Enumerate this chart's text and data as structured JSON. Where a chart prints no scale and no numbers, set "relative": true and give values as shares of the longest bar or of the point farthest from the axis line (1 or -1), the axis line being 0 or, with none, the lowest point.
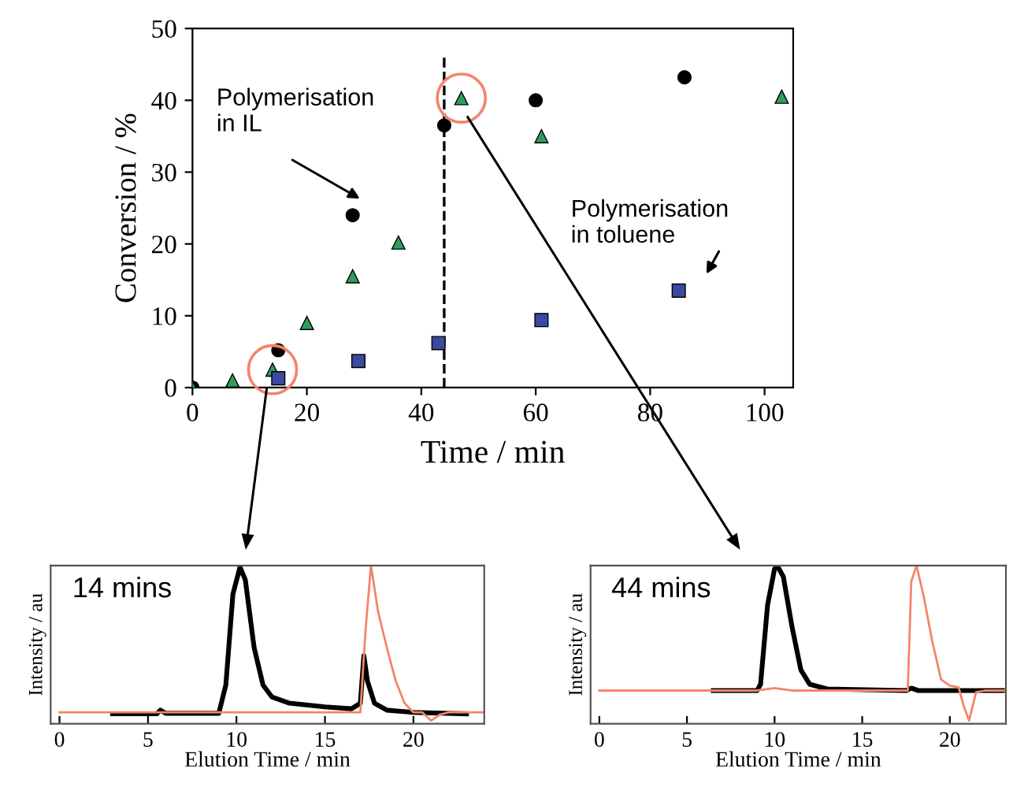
{
  "chart_data": [
    {
      "type": "scatter",
      "xlabel": "Time / min",
      "ylabel": "Conversion / %",
      "xlim": [
        0,
        105
      ],
      "xticks": [
        0,
        20,
        40,
        60,
        80,
        100
      ],
      "ylim": [
        0,
        50
      ],
      "yticks": [
        0,
        10,
        20,
        30,
        40,
        50
      ],
      "grid": false,
      "series": [
        {
          "color": "#000000",
          "marker": "circle",
          "x": [
            0,
            15,
            28,
            44,
            60,
            86
          ],
          "values": [
            0,
            5.2,
            24,
            36.5,
            40,
            43.2
          ]
        },
        {
          "color": "#2e9e5e",
          "marker": "triangle",
          "x": [
            0,
            7,
            14,
            20,
            28,
            36,
            47,
            61,
            103
          ],
          "values": [
            0,
            1,
            2.5,
            9,
            15.5,
            20.2,
            40.3,
            35,
            40.5
          ]
        },
        {
          "color": "#3a4aa0",
          "marker": "square",
          "x": [
            15,
            29,
            43,
            61,
            85
          ],
          "values": [
            1.3,
            3.7,
            6.2,
            9.4,
            13.5
          ]
        }
      ],
      "ref_lines": [
        {
          "axis": "x",
          "value": 44,
          "color": "#000000",
          "line_style": "dashed"
        }
      ],
      "annotations": [
        "Polymerisation\nin IL",
        "Polymerisation\nin toluene"
      ]
    },
    {
      "type": "line",
      "relative": true,
      "xlabel": "Elution Time / min",
      "ylabel": "Intensity / au",
      "xlim": [
        -0.5,
        24
      ],
      "xticks": [
        0,
        5,
        10,
        15,
        20
      ],
      "tick_labels": "x",
      "line_style": "solid",
      "series": [
        {
          "color": "#000000",
          "x": [
            3,
            5.5,
            5.7,
            6,
            9,
            9.4,
            9.8,
            10.2,
            10.5,
            11,
            11.5,
            12,
            13,
            15,
            16.5,
            17,
            17.2,
            17.4,
            17.8,
            18.5,
            20,
            23
          ],
          "values": [
            0.063,
            0.063,
            0.086,
            0.066,
            0.066,
            0.245,
            0.82,
            0.99,
            0.91,
            0.48,
            0.245,
            0.17,
            0.13,
            0.107,
            0.095,
            0.13,
            0.43,
            0.27,
            0.13,
            0.086,
            0.072,
            0.063
          ]
        },
        {
          "color": "#f4846a",
          "x": [
            0,
            17,
            17.3,
            17.6,
            18,
            18.5,
            19,
            19.5,
            20,
            20.5,
            21,
            21.5,
            22,
            24
          ],
          "values": [
            0.072,
            0.072,
            0.6,
            1.0,
            0.71,
            0.48,
            0.27,
            0.13,
            0.072,
            0.072,
            0.02,
            0.058,
            0.072,
            0.072
          ]
        }
      ],
      "annotations": [
        "14 mins"
      ]
    },
    {
      "type": "line",
      "relative": true,
      "xlabel": "Elution Time / min",
      "ylabel": "Intensity / au",
      "xlim": [
        -0.5,
        23.2
      ],
      "xticks": [
        0,
        5,
        10,
        15,
        20
      ],
      "tick_labels": "x",
      "line_style": "solid",
      "series": [
        {
          "color": "#000000",
          "x": [
            6.5,
            9,
            9.2,
            9.6,
            10,
            10.2,
            10.5,
            11,
            11.5,
            12,
            13,
            17.5,
            17.8,
            18.2,
            23
          ],
          "values": [
            0.21,
            0.21,
            0.25,
            0.75,
            0.98,
            0.99,
            0.93,
            0.61,
            0.34,
            0.25,
            0.22,
            0.21,
            0.225,
            0.21,
            0.21
          ]
        },
        {
          "color": "#f4846a",
          "x": [
            0,
            9,
            10,
            11,
            17.6,
            17.8,
            18.1,
            18.5,
            19,
            19.5,
            20,
            20.5,
            20.8,
            21.1,
            21.5,
            22,
            23.2
          ],
          "values": [
            0.21,
            0.21,
            0.225,
            0.21,
            0.21,
            0.9,
            1.0,
            0.81,
            0.52,
            0.28,
            0.24,
            0.23,
            0.11,
            0.02,
            0.2,
            0.21,
            0.21
          ]
        }
      ],
      "annotations": [
        "44 mins"
      ]
    }
  ]
}
